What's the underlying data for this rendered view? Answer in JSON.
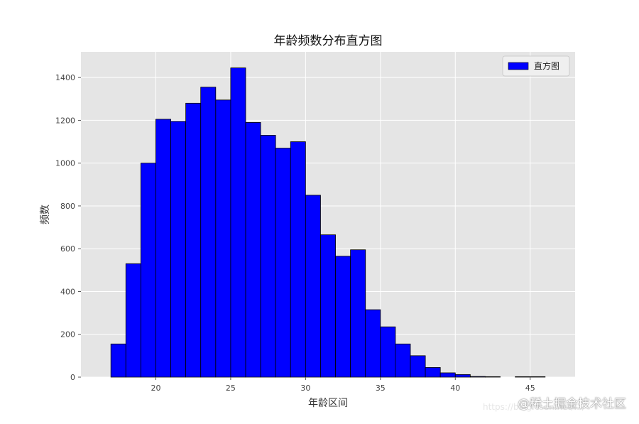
{
  "chart_data": {
    "type": "bar",
    "title": "年龄频数分布直方图",
    "xlabel": "年龄区间",
    "ylabel": "频数",
    "bin_start": 17,
    "bin_width": 1,
    "values": [
      155,
      530,
      1000,
      1205,
      1195,
      1280,
      1355,
      1295,
      1445,
      1190,
      1130,
      1070,
      1100,
      850,
      665,
      565,
      595,
      315,
      235,
      155,
      100,
      45,
      20,
      12,
      3,
      2,
      0,
      2,
      2,
      0,
      0
    ],
    "xlim": [
      15,
      48
    ],
    "ylim": [
      0,
      1520
    ],
    "xticks": [
      20,
      25,
      30,
      35,
      40,
      45
    ],
    "yticks": [
      0,
      200,
      400,
      600,
      800,
      1000,
      1200,
      1400
    ],
    "grid": true,
    "legend": {
      "entries": [
        "直方图"
      ],
      "position": "top-right"
    },
    "bar_color": "#0000ff",
    "edge_color": "#000000",
    "background_color": "#e5e5e5"
  },
  "watermark": {
    "text": "@稀土掘金技术社区",
    "url_text": "https://blog.csdn.net/.../"
  }
}
